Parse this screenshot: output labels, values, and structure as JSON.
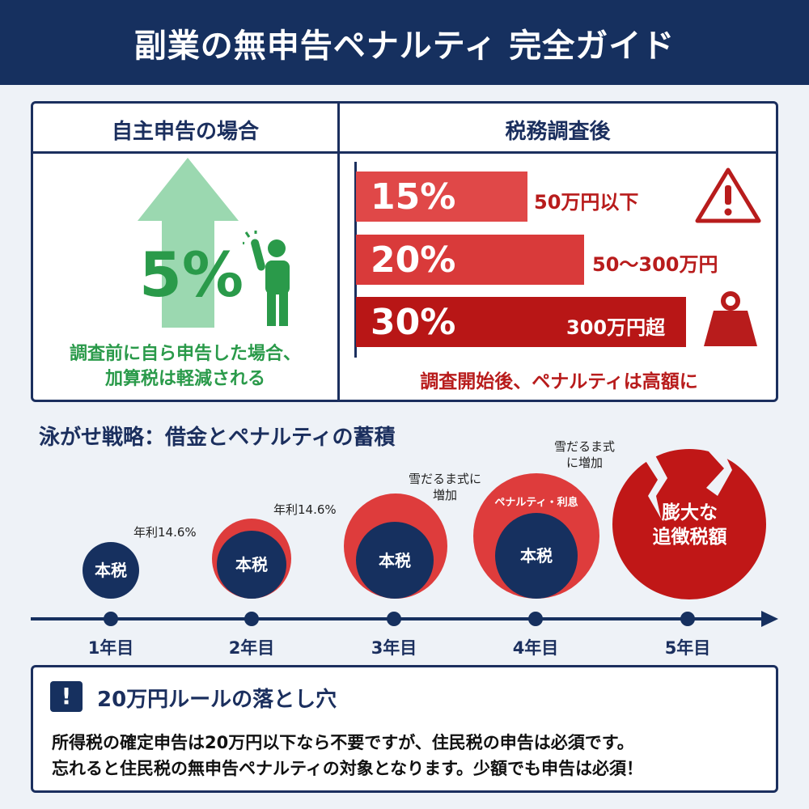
{
  "header": {
    "title": "副業の無申告ペナルティ 完全ガイド"
  },
  "voluntary": {
    "heading": "自主申告の場合",
    "rate": "5%",
    "desc_lines": [
      "調査前に自ら申告した場合、",
      "加算税は軽減される"
    ],
    "color": "#2a9a4a"
  },
  "audit": {
    "heading": "税務調査後",
    "bars": [
      {
        "rate": "15%",
        "label": "50万円以下",
        "value": 15,
        "color": "#e04848"
      },
      {
        "rate": "20%",
        "label": "50〜300万円",
        "value": 20,
        "color": "#d93a3a"
      },
      {
        "rate": "30%",
        "label": "300万円超",
        "value": 30,
        "color": "#b81616"
      }
    ],
    "note": "調査開始後、ペナルティは高額に",
    "icons": [
      "warning-icon",
      "weight-icon"
    ]
  },
  "timeline": {
    "title": "泳がせ戦略：借金とペナルティの蓄積",
    "years": [
      "1年目",
      "2年目",
      "3年目",
      "4年目",
      "5年目"
    ],
    "core_label": "本税",
    "annotations": {
      "rate1": "年利14.6%",
      "rate2": "年利14.6%",
      "snow1_lines": [
        "雪だるま式に",
        "増加"
      ],
      "snow2_lines": [
        "雪だるま式",
        "に増加"
      ],
      "penalty": "ペナルティ・利息",
      "final_lines": [
        "膨大な",
        "追徴税額"
      ]
    }
  },
  "rule": {
    "title": "20万円ルールの落とし穴",
    "lines": [
      "所得税の確定申告は20万円以下なら不要ですが、住民税の申告は必須です。",
      "忘れると住民税の無申告ペナルティの対象となります。少額でも申告は必須！"
    ]
  }
}
